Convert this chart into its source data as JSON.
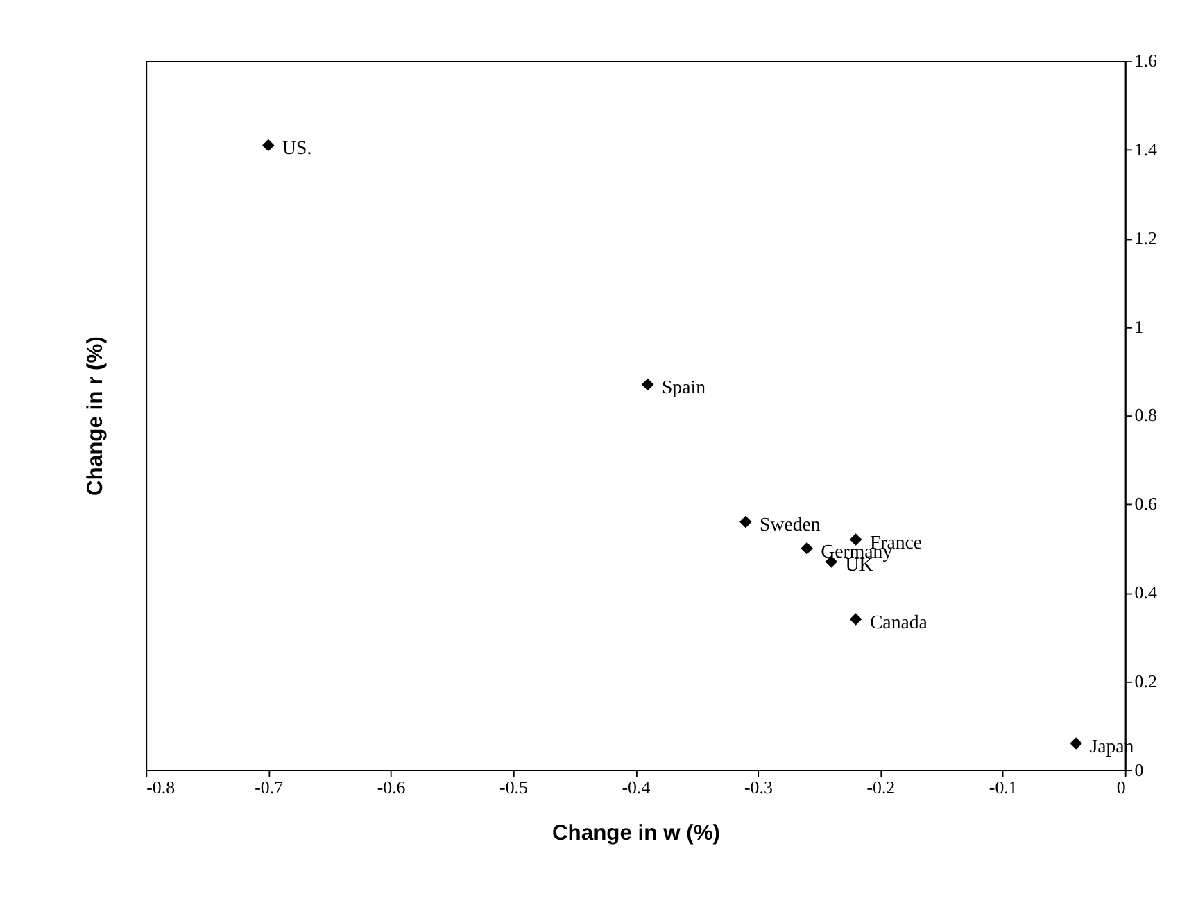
{
  "chart_data": {
    "type": "scatter",
    "xlabel": "Change in w (%)",
    "ylabel": "Change in r (%)",
    "x": [
      -0.7,
      -0.39,
      -0.31,
      -0.26,
      -0.24,
      -0.22,
      -0.22,
      -0.04
    ],
    "series": [
      {
        "color": "#000000",
        "values": [
          1.41,
          0.87,
          0.56,
          0.5,
          0.47,
          0.52,
          0.34,
          0.06
        ]
      }
    ],
    "annotations": [
      {
        "text": "US.",
        "x": -0.7,
        "y": 1.41
      },
      {
        "text": "Spain",
        "x": -0.39,
        "y": 0.87
      },
      {
        "text": "Sweden",
        "x": -0.31,
        "y": 0.56
      },
      {
        "text": "Germany",
        "x": -0.26,
        "y": 0.5
      },
      {
        "text": "UK",
        "x": -0.24,
        "y": 0.47
      },
      {
        "text": "France",
        "x": -0.22,
        "y": 0.52
      },
      {
        "text": "Canada",
        "x": -0.22,
        "y": 0.34
      },
      {
        "text": "Japan",
        "x": -0.04,
        "y": 0.06
      }
    ],
    "xlim": [
      -0.8,
      0
    ],
    "xticks": [
      -0.8,
      -0.7,
      -0.6,
      -0.5,
      -0.4,
      -0.3,
      -0.2,
      -0.1,
      0
    ],
    "ylim": [
      0,
      1.6
    ],
    "yticks": [
      0,
      0.2,
      0.4,
      0.6,
      0.8,
      1,
      1.2,
      1.4,
      1.6
    ],
    "marker": "diamond",
    "grid": false
  }
}
